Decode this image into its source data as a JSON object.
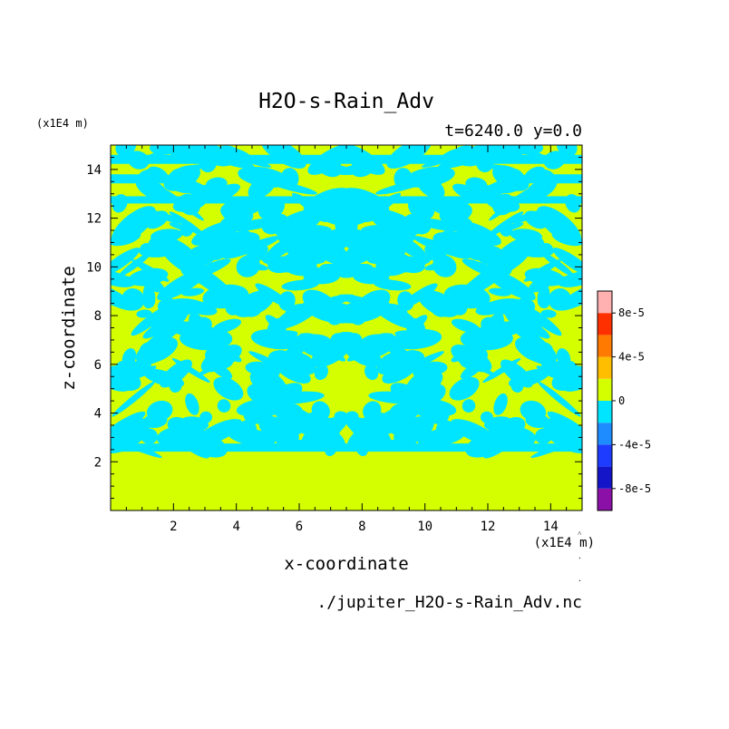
{
  "chart_data": {
    "type": "heatmap",
    "title": "H2O-s-Rain_Adv",
    "subtitle": "t=6240.0 y=0.0",
    "xlabel": "x-coordinate",
    "ylabel": "z-coordinate",
    "x_unit": "(x1E4 m)",
    "y_unit": "(x1E4 m)",
    "xlim": [
      0,
      15
    ],
    "ylim": [
      0,
      15
    ],
    "x_ticks": [
      2,
      4,
      6,
      8,
      10,
      12,
      14
    ],
    "y_ticks": [
      2,
      4,
      6,
      8,
      10,
      12,
      14
    ],
    "source_file": "./jupiter_H2O-s-Rain_Adv.nc",
    "colorbar": {
      "levels": [
        -0.0001,
        -8e-05,
        -6e-05,
        -4e-05,
        -2e-05,
        0,
        2e-05,
        4e-05,
        6e-05,
        8e-05,
        0.0001
      ],
      "tick_labels": [
        "8e-5",
        "4e-5",
        "0",
        "-4e-5",
        "-8e-5"
      ],
      "tick_values": [
        8e-05,
        4e-05,
        0,
        -4e-05,
        -8e-05
      ],
      "colors": [
        "#8b10a8",
        "#1414c8",
        "#1e3cff",
        "#1e8cff",
        "#00e5ff",
        "#d4ff00",
        "#ffbf00",
        "#ff7a00",
        "#ff3000",
        "#ffb0b0"
      ]
    },
    "field_summary": {
      "dominant_values": [
        "0 to 2e-5",
        "-2e-5 to 0"
      ],
      "lower_layer_z_below": 2.5,
      "lower_layer_value": "0 to 2e-5",
      "mixed_layer_z_range": [
        2.5,
        15
      ],
      "symmetry": "mirror about x = 7.5"
    }
  }
}
